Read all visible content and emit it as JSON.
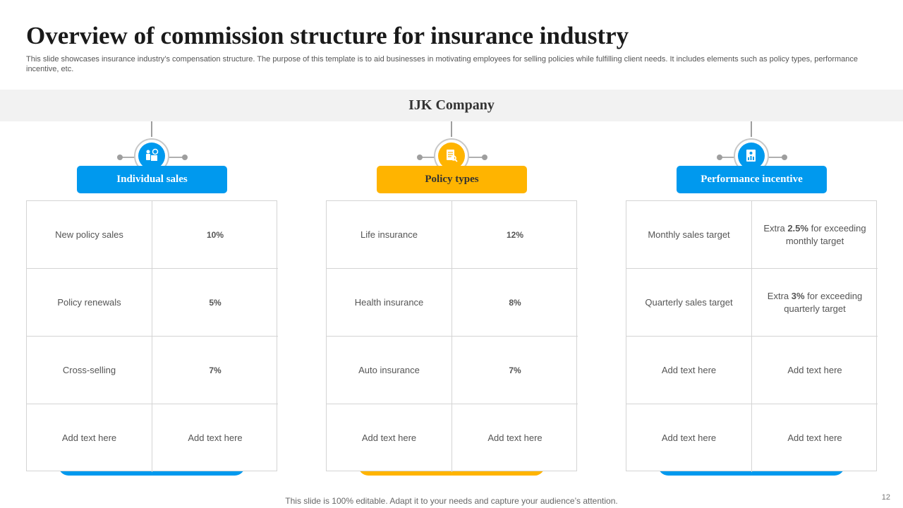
{
  "slide": {
    "title": "Overview of commission  structure for insurance industry",
    "subtitle": "This slide showcases insurance industry’s compensation structure. The purpose of this template is to aid businesses in motivating employees for selling policies while fulfilling client needs. It includes elements such as policy types, performance incentive, etc.",
    "company": "IJK Company",
    "footer": "This slide is 100% editable. Adapt it to your needs and capture your audience’s attention.",
    "page_number": "12"
  },
  "colors": {
    "blue": "#0099ee",
    "orange": "#ffb400",
    "band": "#f2f2f2"
  },
  "columns": [
    {
      "header": "Individual  sales",
      "icon": "sales-person-icon",
      "rows": [
        {
          "label": "New policy sales",
          "value": "10%"
        },
        {
          "label": "Policy renewals",
          "value": "5%"
        },
        {
          "label": "Cross-selling",
          "value": "7%"
        },
        {
          "label": "Add text here",
          "value": "Add text here"
        }
      ]
    },
    {
      "header": "Policy  types",
      "icon": "policy-document-search-icon",
      "rows": [
        {
          "label": "Life insurance",
          "value": "12%"
        },
        {
          "label": "Health insurance",
          "value": "8%"
        },
        {
          "label": "Auto insurance",
          "value": "7%"
        },
        {
          "label": "Add text here",
          "value": "Add text here"
        }
      ]
    },
    {
      "header": "Performance  incentive",
      "icon": "performance-report-icon",
      "rows": [
        {
          "label": "Monthly sales target",
          "value_prefix": "Extra ",
          "value_bold": "2.5%",
          "value_suffix": " for exceeding monthly target"
        },
        {
          "label": "Quarterly sales target",
          "value_prefix": "Extra ",
          "value_bold": "3%",
          "value_suffix": " for exceeding quarterly target"
        },
        {
          "label": "Add text here",
          "value": "Add text here"
        },
        {
          "label": "Add text here",
          "value": "Add text here"
        }
      ]
    }
  ]
}
